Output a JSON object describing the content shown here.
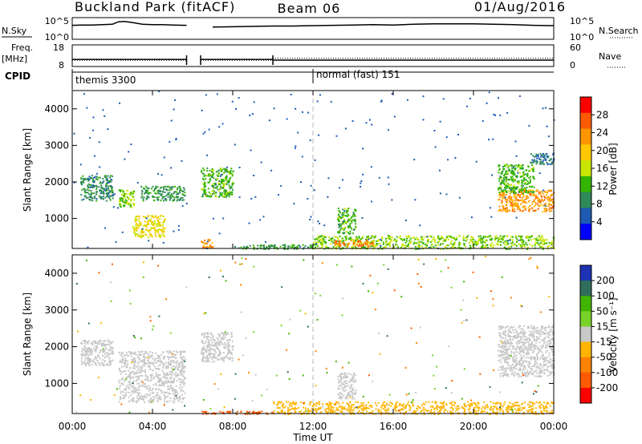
{
  "header": {
    "station": "Buckland Park (fitACF)",
    "beam": "Beam 06",
    "date": "01/Aug/2016"
  },
  "colors": {
    "trace": "#000000",
    "frame": "#000000",
    "dashed": "#b4b4b4"
  },
  "chart_data": [
    {
      "type": "line",
      "name": "noise-panel",
      "left_label": "N.Sky",
      "right_label": "N.Search",
      "left_ticks": [
        "10^5",
        "10^0"
      ],
      "right_ticks": [
        "10^5",
        "10^0"
      ],
      "x_hours": [
        0,
        0.5,
        1,
        1.5,
        2,
        2.3,
        2.6,
        3,
        3.5,
        4,
        4.5,
        5,
        5.7,
        6.4,
        7,
        8,
        9,
        10,
        11,
        12,
        13,
        14,
        15,
        16,
        17,
        18,
        19,
        20,
        21,
        22,
        23,
        24
      ],
      "log_nsky": [
        3.5,
        3.6,
        3.6,
        3.7,
        3.8,
        4.5,
        4.6,
        4.3,
        3.8,
        3.7,
        3.7,
        3.6,
        3.5,
        null,
        3.0,
        3.1,
        3.2,
        3.3,
        3.3,
        3.4,
        3.5,
        3.6,
        3.7,
        3.6,
        3.8,
        3.9,
        3.9,
        3.9,
        3.8,
        3.7,
        3.5,
        3.4
      ],
      "gaps": [
        [
          5.7,
          6.4
        ]
      ]
    },
    {
      "type": "line",
      "name": "freq-panel",
      "left_label": "Freq.",
      "left_unit": "[MHz]",
      "right_label": "Nave",
      "left_ticks": [
        "18",
        "8"
      ],
      "right_ticks": [
        "60",
        "0"
      ],
      "freq_segments": [
        {
          "from": 0.0,
          "to": 5.7,
          "mhz": 11.0
        },
        {
          "from": 6.4,
          "to": 10.0,
          "mhz": 11.0
        },
        {
          "from": 10.0,
          "to": 24.0,
          "mhz": 10.6
        }
      ],
      "nave_segments": [
        {
          "from": 0.0,
          "to": 5.7,
          "value": 15
        },
        {
          "from": 6.4,
          "to": 10.0,
          "value": 15
        },
        {
          "from": 10.0,
          "to": 24.0,
          "value": 22
        }
      ]
    },
    {
      "type": "table",
      "name": "cpid-panel",
      "label": "CPID",
      "modes": [
        {
          "label": "themis 3300",
          "start_hour": 0.0
        },
        {
          "label": "normal (fast) 151",
          "start_hour": 12.0
        }
      ]
    },
    {
      "type": "heatmap",
      "name": "power-panel",
      "xlabel": "",
      "ylabel": "Slant Range [km]",
      "colorbar_label": "Power [dB]",
      "colorbar_ticks": [
        "28",
        "24",
        "20",
        "16",
        "12",
        "8",
        "4"
      ],
      "colorbar_colors": [
        "#ff0000",
        "#ff5a00",
        "#ff9600",
        "#ffc800",
        "#c8e600",
        "#32b400",
        "#2f8a5a",
        "#1e5ab4",
        "#0000ff"
      ],
      "y_ticks": [
        "4000",
        "3000",
        "2000",
        "1000"
      ],
      "xlim": [
        0,
        24
      ],
      "ylim": [
        180,
        4500
      ],
      "dashed_hour": 12,
      "regions": [
        {
          "x0": 0.4,
          "x1": 2.0,
          "y0": 1500,
          "y1": 2200,
          "v": 8
        },
        {
          "x0": 2.3,
          "x1": 3.1,
          "y0": 1300,
          "y1": 1800,
          "v": 14
        },
        {
          "x0": 3.0,
          "x1": 4.6,
          "y0": 500,
          "y1": 1100,
          "v": 18
        },
        {
          "x0": 3.4,
          "x1": 5.6,
          "y0": 1500,
          "y1": 1900,
          "v": 9
        },
        {
          "x0": 6.4,
          "x1": 8.0,
          "y0": 1600,
          "y1": 2400,
          "v": 12
        },
        {
          "x0": 6.4,
          "x1": 7.0,
          "y0": 200,
          "y1": 450,
          "v": 24
        },
        {
          "x0": 8.0,
          "x1": 12.0,
          "y0": 180,
          "y1": 300,
          "v": 10
        },
        {
          "x0": 12.0,
          "x1": 24.0,
          "y0": 180,
          "y1": 550,
          "v": 14
        },
        {
          "x0": 13.0,
          "x1": 15.0,
          "y0": 250,
          "y1": 420,
          "v": 26
        },
        {
          "x0": 13.2,
          "x1": 14.1,
          "y0": 600,
          "y1": 1300,
          "v": 12
        },
        {
          "x0": 21.2,
          "x1": 24.0,
          "y0": 1200,
          "y1": 1800,
          "v": 24
        },
        {
          "x0": 21.2,
          "x1": 23.0,
          "y0": 1700,
          "y1": 2500,
          "v": 12
        },
        {
          "x0": 22.8,
          "x1": 24.0,
          "y0": 2500,
          "y1": 2800,
          "v": 6
        }
      ]
    },
    {
      "type": "heatmap",
      "name": "velocity-panel",
      "xlabel": "Time UT",
      "ylabel": "Slant Range [km]",
      "colorbar_label": "Velocity [m s⁻¹]",
      "colorbar_ticks": [
        "200",
        "100",
        "50",
        "15",
        "-15",
        "-50",
        "-100",
        "-200"
      ],
      "colorbar_colors": [
        "#1e32b4",
        "#2f6e5a",
        "#41b400",
        "#78d228",
        "#c8c8c8",
        "#ffb400",
        "#ff8200",
        "#ff5a00",
        "#ff0000"
      ],
      "x_ticks": [
        "00:00",
        "04:00",
        "08:00",
        "12:00",
        "16:00",
        "20:00",
        "00:00"
      ],
      "y_ticks": [
        "4000",
        "3000",
        "2000",
        "1000"
      ],
      "xlim": [
        0,
        24
      ],
      "ylim": [
        180,
        4500
      ],
      "dashed_hour": 12,
      "regions": [
        {
          "x0": 0.4,
          "x1": 2.0,
          "y0": 1500,
          "y1": 2200,
          "v": 0
        },
        {
          "x0": 2.3,
          "x1": 5.6,
          "y0": 500,
          "y1": 1900,
          "v": 0
        },
        {
          "x0": 6.4,
          "x1": 8.0,
          "y0": 1600,
          "y1": 2400,
          "v": 0
        },
        {
          "x0": 6.4,
          "x1": 10.0,
          "y0": 180,
          "y1": 260,
          "v": -200
        },
        {
          "x0": 10.0,
          "x1": 24.0,
          "y0": 180,
          "y1": 520,
          "v": -60
        },
        {
          "x0": 13.2,
          "x1": 14.1,
          "y0": 600,
          "y1": 1300,
          "v": 0
        },
        {
          "x0": 21.2,
          "x1": 24.0,
          "y0": 1200,
          "y1": 2600,
          "v": 0
        }
      ]
    }
  ]
}
